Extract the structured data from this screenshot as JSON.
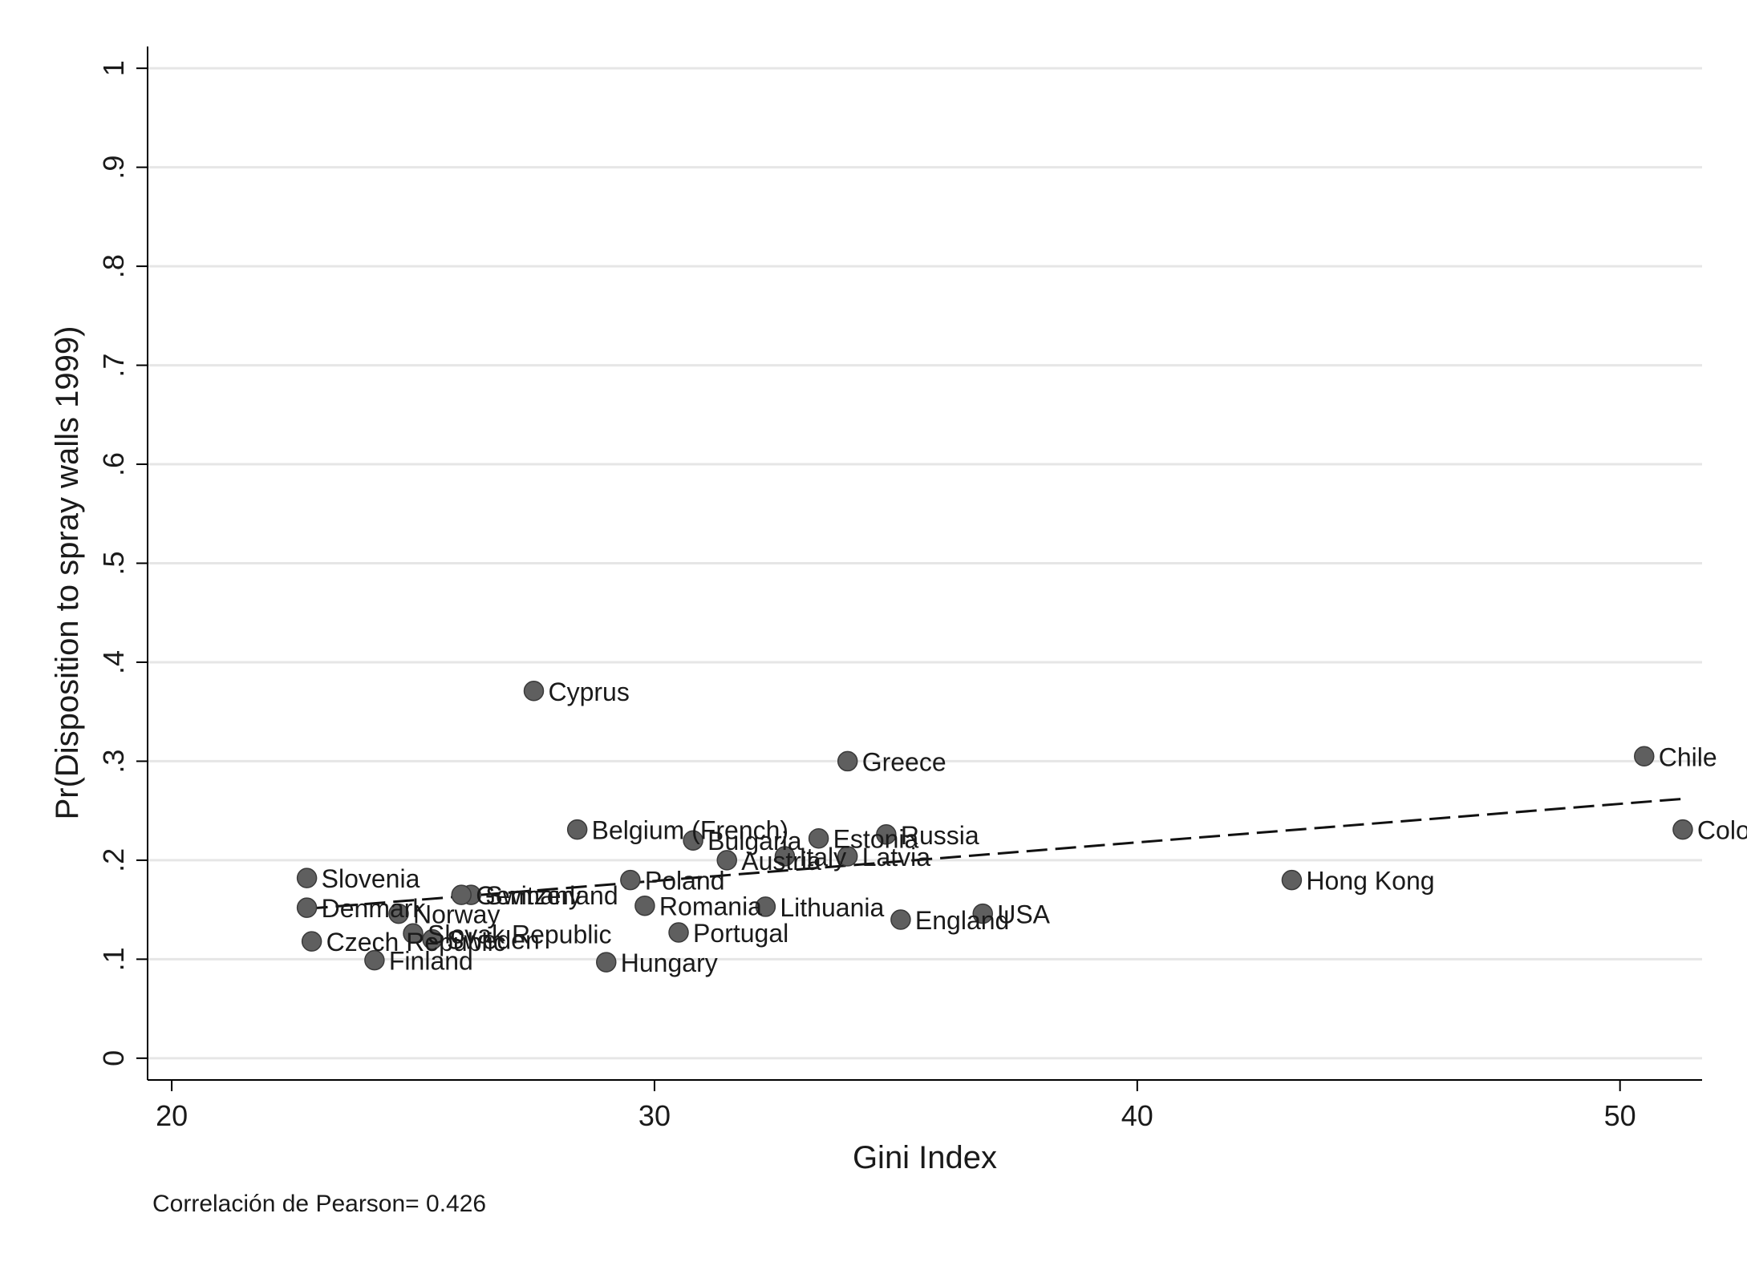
{
  "chart_data": {
    "type": "scatter",
    "xlabel": "Gini Index",
    "ylabel": "Pr(Disposition to spray walls 1999)",
    "xlim": [
      19.5,
      51.7
    ],
    "ylim": [
      -0.022,
      1.022
    ],
    "x_ticks": [
      20,
      30,
      40,
      50
    ],
    "x_tick_labels": [
      "20",
      "30",
      "40",
      "50"
    ],
    "y_ticks": [
      0,
      0.1,
      0.2,
      0.3,
      0.4,
      0.5,
      0.6,
      0.7,
      0.8,
      0.9,
      1
    ],
    "y_tick_labels": [
      "0",
      ".1",
      ".2",
      ".3",
      ".4",
      ".5",
      ".6",
      ".7",
      ".8",
      ".9",
      "1"
    ],
    "grid": true,
    "note": "Correlación de Pearson= 0.426",
    "points": [
      {
        "label": "Cyprus",
        "x": 27.5,
        "y": 0.371
      },
      {
        "label": "Greece",
        "x": 34.0,
        "y": 0.3
      },
      {
        "label": "Chile",
        "x": 50.5,
        "y": 0.305
      },
      {
        "label": "Colo",
        "x": 51.3,
        "y": 0.231
      },
      {
        "label": "Belgium (French)",
        "x": 28.4,
        "y": 0.231
      },
      {
        "label": "Bulgaria",
        "x": 30.8,
        "y": 0.22
      },
      {
        "label": "Estonia",
        "x": 33.4,
        "y": 0.222
      },
      {
        "label": "Russia",
        "x": 34.8,
        "y": 0.226
      },
      {
        "label": "Austria",
        "x": 31.5,
        "y": 0.2
      },
      {
        "label": "Italy",
        "x": 32.7,
        "y": 0.204
      },
      {
        "label": "Latvia",
        "x": 34.0,
        "y": 0.204
      },
      {
        "label": "Slovenia",
        "x": 22.8,
        "y": 0.182
      },
      {
        "label": "Poland",
        "x": 29.5,
        "y": 0.18
      },
      {
        "label": "Hong Kong",
        "x": 43.2,
        "y": 0.18
      },
      {
        "label": "Switzerland",
        "x": 26.2,
        "y": 0.165
      },
      {
        "label": "Germany",
        "x": 26.0,
        "y": 0.165
      },
      {
        "label": "Denmark",
        "x": 22.8,
        "y": 0.152
      },
      {
        "label": "Norway",
        "x": 24.7,
        "y": 0.146
      },
      {
        "label": "Romania",
        "x": 29.8,
        "y": 0.154
      },
      {
        "label": "Lithuania",
        "x": 32.3,
        "y": 0.153
      },
      {
        "label": "England",
        "x": 35.1,
        "y": 0.14
      },
      {
        "label": "USA",
        "x": 36.8,
        "y": 0.146
      },
      {
        "label": "Slovak Republic",
        "x": 25.0,
        "y": 0.126
      },
      {
        "label": "Sweden",
        "x": 25.4,
        "y": 0.12
      },
      {
        "label": "Portugal",
        "x": 30.5,
        "y": 0.127
      },
      {
        "label": "Czech Republic",
        "x": 22.9,
        "y": 0.118
      },
      {
        "label": "Finland",
        "x": 24.2,
        "y": 0.099
      },
      {
        "label": "Hungary",
        "x": 29.0,
        "y": 0.097
      }
    ],
    "fit_line": {
      "style": "dashed",
      "x": [
        22.8,
        51.3
      ],
      "y": [
        0.151,
        0.262
      ]
    }
  }
}
